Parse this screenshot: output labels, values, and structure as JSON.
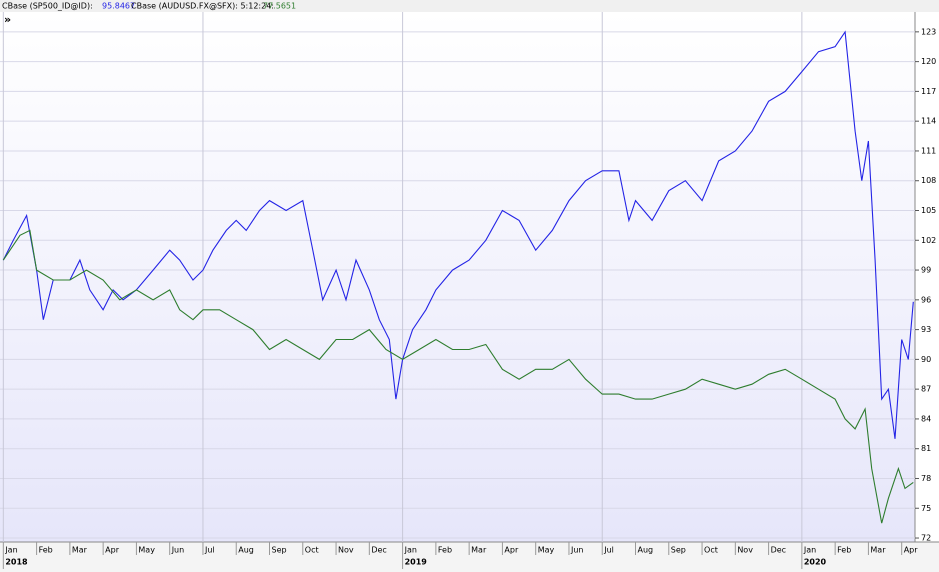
{
  "header": [
    {
      "label": "CBase (SP500_ID@ID):",
      "value": 95.8467
    },
    {
      "label": "CBase (AUDUSD.FX@SFX): 5:12:24:",
      "value": 77.5651
    }
  ],
  "chart_data": {
    "type": "line",
    "series": [
      {
        "name": "CBase (SP500_ID@ID)",
        "color": "#2424e6",
        "x": [
          0,
          0.3,
          0.7,
          1.0,
          1.2,
          1.5,
          2.0,
          2.3,
          2.6,
          3.0,
          3.3,
          3.6,
          4.0,
          4.5,
          5.0,
          5.3,
          5.7,
          6.0,
          6.3,
          6.7,
          7.0,
          7.3,
          7.7,
          8.0,
          8.5,
          9.0,
          9.3,
          9.6,
          10.0,
          10.3,
          10.6,
          11.0,
          11.3,
          11.6,
          11.8,
          12.0,
          12.3,
          12.7,
          13.0,
          13.5,
          14.0,
          14.5,
          15.0,
          15.5,
          16.0,
          16.5,
          17.0,
          17.5,
          18.0,
          18.5,
          18.8,
          19.0,
          19.5,
          20.0,
          20.5,
          21.0,
          21.5,
          22.0,
          22.5,
          23.0,
          23.5,
          24.0,
          24.5,
          25.0,
          25.3,
          25.6,
          25.8,
          26.0,
          26.2,
          26.4,
          26.6,
          26.8,
          27.0,
          27.2,
          27.35
        ],
        "values": [
          100,
          102,
          104.5,
          99,
          94,
          98,
          98,
          100,
          97,
          95,
          97,
          96,
          97,
          99,
          101,
          100,
          98,
          99,
          101,
          103,
          104,
          103,
          105,
          106,
          105,
          106,
          101,
          96,
          99,
          96,
          100,
          97,
          94,
          92,
          86,
          90,
          93,
          95,
          97,
          99,
          100,
          102,
          105,
          104,
          101,
          103,
          106,
          108,
          109,
          109,
          104,
          106,
          104,
          107,
          108,
          106,
          110,
          111,
          113,
          116,
          117,
          119,
          121,
          121.5,
          123,
          113,
          108,
          112,
          100,
          86,
          87,
          82,
          92,
          90,
          95.8
        ]
      },
      {
        "name": "CBase (AUDUSD.FX@SFX)",
        "color": "#2e7d2e",
        "x": [
          0,
          0.5,
          0.8,
          1.0,
          1.5,
          2.0,
          2.5,
          3.0,
          3.5,
          4.0,
          4.5,
          5.0,
          5.3,
          5.7,
          6.0,
          6.5,
          7.0,
          7.5,
          8.0,
          8.5,
          9.0,
          9.5,
          10.0,
          10.5,
          11.0,
          11.5,
          12.0,
          12.5,
          13.0,
          13.5,
          14.0,
          14.5,
          15.0,
          15.5,
          16.0,
          16.5,
          17.0,
          17.5,
          18.0,
          18.5,
          19.0,
          19.5,
          20.0,
          20.5,
          21.0,
          21.5,
          22.0,
          22.5,
          23.0,
          23.5,
          24.0,
          24.5,
          25.0,
          25.3,
          25.6,
          25.9,
          26.1,
          26.4,
          26.6,
          26.9,
          27.1,
          27.35
        ],
        "values": [
          100,
          102.5,
          103,
          99,
          98,
          98,
          99,
          98,
          96,
          97,
          96,
          97,
          95,
          94,
          95,
          95,
          94,
          93,
          91,
          92,
          91,
          90,
          92,
          92,
          93,
          91,
          90,
          91,
          92,
          91,
          91,
          91.5,
          89,
          88,
          89,
          89,
          90,
          88,
          86.5,
          86.5,
          86,
          86,
          86.5,
          87,
          88,
          87.5,
          87,
          87.5,
          88.5,
          89,
          88,
          87,
          86,
          84,
          83,
          85,
          79,
          73.5,
          76,
          79,
          77,
          77.6
        ]
      }
    ],
    "xlim": [
      -0.1,
      27.4
    ],
    "xticks": [
      {
        "value": 0,
        "label": "Jan"
      },
      {
        "value": 1,
        "label": "Feb"
      },
      {
        "value": 2,
        "label": "Mar"
      },
      {
        "value": 3,
        "label": "Apr"
      },
      {
        "value": 4,
        "label": "May"
      },
      {
        "value": 5,
        "label": "Jun"
      },
      {
        "value": 6,
        "label": "Jul"
      },
      {
        "value": 7,
        "label": "Aug"
      },
      {
        "value": 8,
        "label": "Sep"
      },
      {
        "value": 9,
        "label": "Oct"
      },
      {
        "value": 10,
        "label": "Nov"
      },
      {
        "value": 11,
        "label": "Dec"
      },
      {
        "value": 12,
        "label": "Jan"
      },
      {
        "value": 13,
        "label": "Feb"
      },
      {
        "value": 14,
        "label": "Mar"
      },
      {
        "value": 15,
        "label": "Apr"
      },
      {
        "value": 16,
        "label": "May"
      },
      {
        "value": 17,
        "label": "Jun"
      },
      {
        "value": 18,
        "label": "Jul"
      },
      {
        "value": 19,
        "label": "Aug"
      },
      {
        "value": 20,
        "label": "Sep"
      },
      {
        "value": 21,
        "label": "Oct"
      },
      {
        "value": 22,
        "label": "Nov"
      },
      {
        "value": 23,
        "label": "Dec"
      },
      {
        "value": 24,
        "label": "Jan"
      },
      {
        "value": 25,
        "label": "Feb"
      },
      {
        "value": 26,
        "label": "Mar"
      },
      {
        "value": 27,
        "label": "Apr"
      }
    ],
    "year_ticks": [
      {
        "value": 0,
        "label": "2018"
      },
      {
        "value": 12,
        "label": "2019"
      },
      {
        "value": 24,
        "label": "2020"
      }
    ],
    "ylim": [
      71.6,
      125
    ],
    "yticks": [
      72,
      75,
      78,
      81,
      84,
      87,
      90,
      93,
      96,
      99,
      102,
      105,
      108,
      111,
      114,
      117,
      120,
      123
    ],
    "grid": true
  }
}
